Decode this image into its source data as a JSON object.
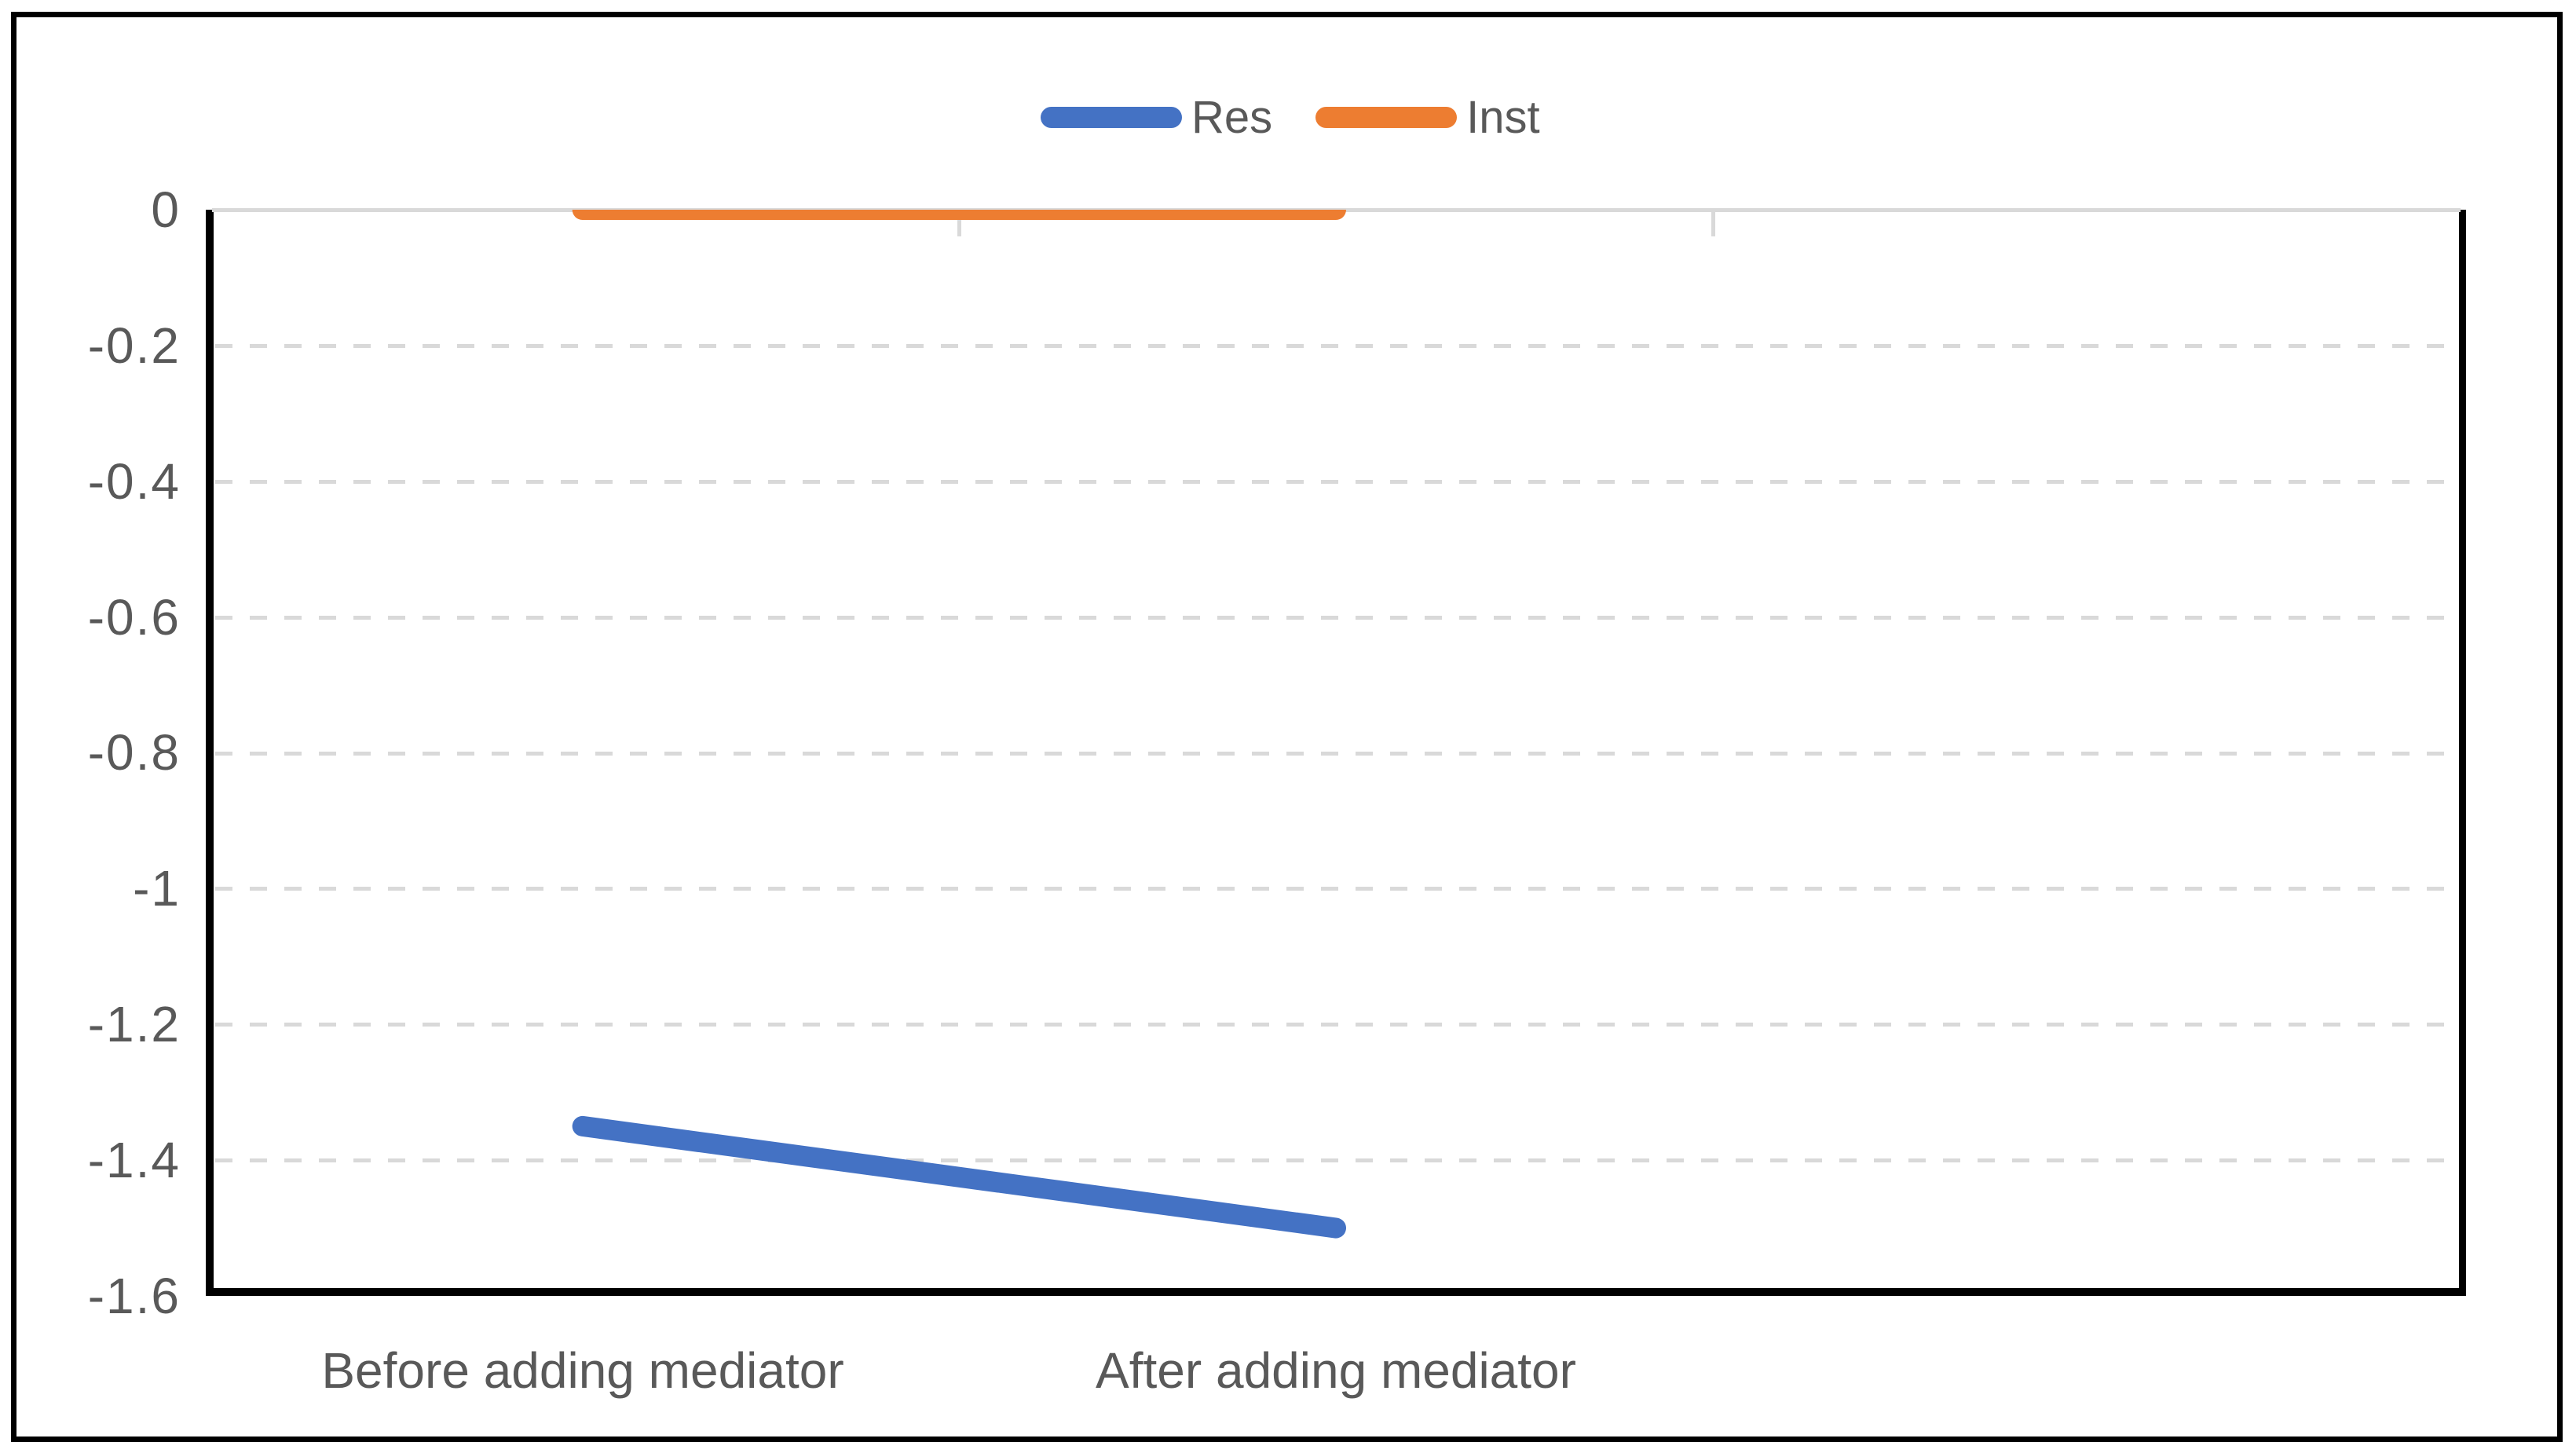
{
  "chart_data": {
    "type": "line",
    "categories": [
      "Before adding mediator",
      "After adding mediator"
    ],
    "series": [
      {
        "name": "Res",
        "values": [
          -1.35,
          -1.5
        ],
        "color": "#4472C4"
      },
      {
        "name": "Inst",
        "values": [
          0,
          0
        ],
        "color": "#ED7D31"
      }
    ],
    "title": "",
    "xlabel": "",
    "ylabel": "",
    "ylim": [
      -1.6,
      0
    ],
    "ytick_step": 0.2,
    "ytick_labels": [
      "0",
      "-0.2",
      "-0.4",
      "-0.6",
      "-0.8",
      "-1",
      "-1.2",
      "-1.4",
      "-1.6"
    ],
    "legend_position": "top-center",
    "legend_entries": [
      "Res",
      "Inst"
    ],
    "grid": "horizontal-dashed",
    "num_category_slots": 3,
    "colors": {
      "gridline": "#D9D9D9",
      "axis_line": "#000000",
      "label_text": "#595959",
      "frame": "#000000",
      "background": "#ffffff"
    }
  }
}
